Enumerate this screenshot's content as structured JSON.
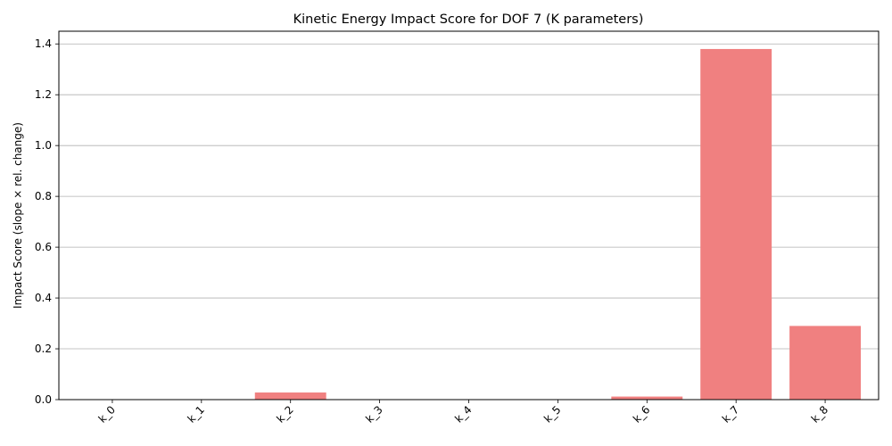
{
  "chart_data": {
    "type": "bar",
    "title": "Kinetic Energy Impact Score for DOF 7 (K parameters)",
    "xlabel": "",
    "ylabel": "Impact Score (slope × rel. change)",
    "categories": [
      "k_0",
      "k_1",
      "k_2",
      "k_3",
      "k_4",
      "k_5",
      "k_6",
      "k_7",
      "k_8"
    ],
    "values": [
      0,
      0,
      0.028,
      0,
      0,
      0,
      0.012,
      1.38,
      0.29
    ],
    "ylim": [
      0,
      1.45
    ],
    "yticks": [
      0.0,
      0.2,
      0.4,
      0.6,
      0.8,
      1.0,
      1.2,
      1.4
    ],
    "ytick_labels": [
      "0.0",
      "0.2",
      "0.4",
      "0.6",
      "0.8",
      "1.0",
      "1.2",
      "1.4"
    ],
    "grid": "y",
    "bar_color": "#f08080",
    "grid_color": "#b0b0b0"
  }
}
